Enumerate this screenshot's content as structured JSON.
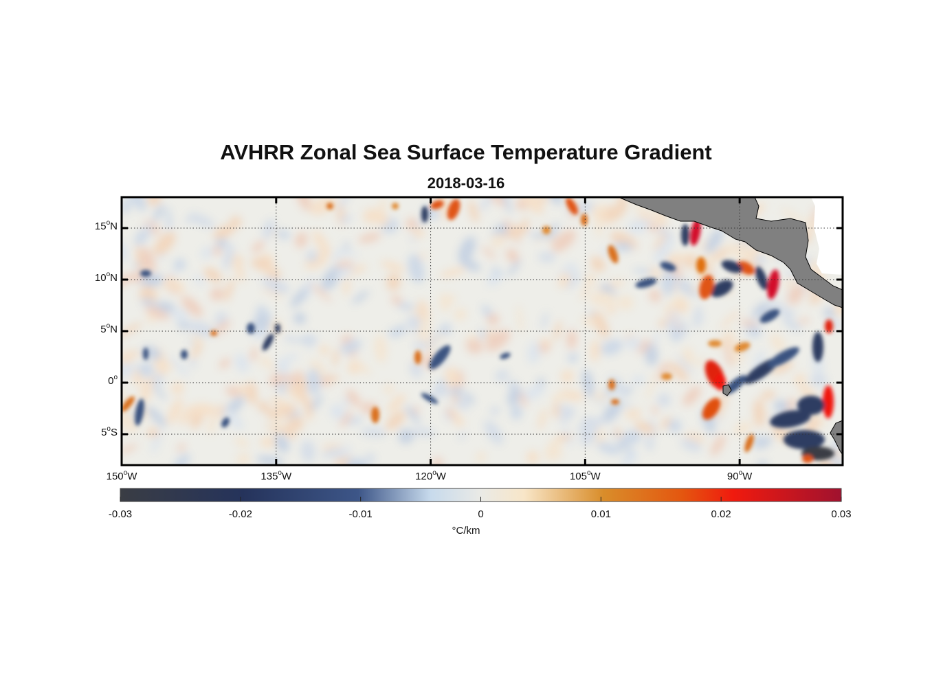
{
  "title": "AVHRR Zonal Sea Surface Temperature Gradient",
  "subtitle": "2018-03-16",
  "map": {
    "lon_range": [
      -150,
      -80
    ],
    "lat_range": [
      -8,
      18
    ],
    "land_color": "#808080",
    "coast_color": "#000000",
    "grid": "dotted",
    "lon_ticks": [
      {
        "value": -150,
        "deg": "150",
        "hem": "W"
      },
      {
        "value": -135,
        "deg": "135",
        "hem": "W"
      },
      {
        "value": -120,
        "deg": "120",
        "hem": "W"
      },
      {
        "value": -105,
        "deg": "105",
        "hem": "W"
      },
      {
        "value": -90,
        "deg": "90",
        "hem": "W"
      }
    ],
    "lat_ticks": [
      {
        "value": 15,
        "deg": "15",
        "hem": "N"
      },
      {
        "value": 10,
        "deg": "10",
        "hem": "N"
      },
      {
        "value": 5,
        "deg": "5",
        "hem": "N"
      },
      {
        "value": 0,
        "deg": "0",
        "hem": ""
      },
      {
        "value": -5,
        "deg": "5",
        "hem": "S"
      }
    ]
  },
  "colorbar": {
    "range": [
      -0.03,
      0.03
    ],
    "ticks": [
      "-0.03",
      "-0.02",
      "-0.01",
      "0",
      "0.01",
      "0.02",
      "0.03"
    ],
    "units": "°C/km",
    "stops": [
      "#3a3d44",
      "#25335b",
      "#3d5688",
      "#c7daec",
      "#eaeae6",
      "#f8e6c8",
      "#d98d2a",
      "#e4560f",
      "#f01a0e",
      "#a0122f"
    ]
  }
}
